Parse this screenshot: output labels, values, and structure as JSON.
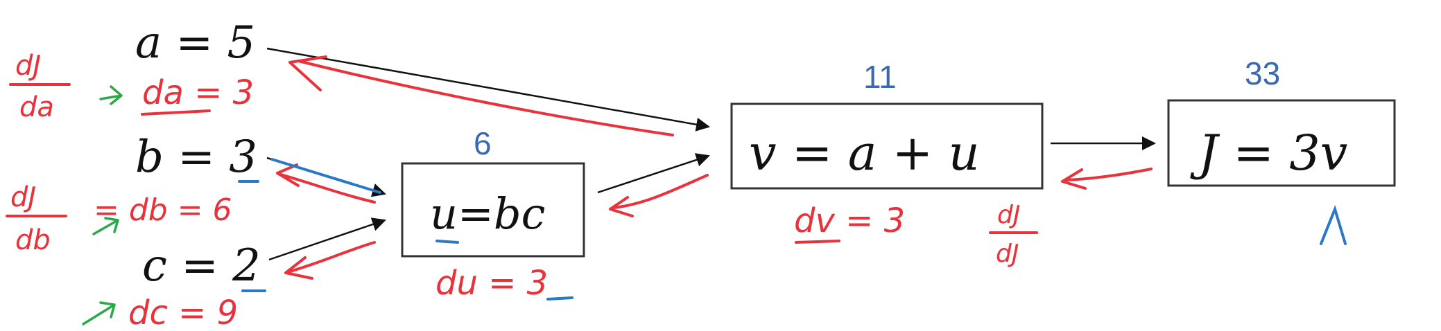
{
  "diagram": {
    "inputs": {
      "a": "a = 5",
      "b": "b = 3",
      "c": "c = 2"
    },
    "nodes": {
      "u": {
        "expr": "u=bc",
        "value": "6"
      },
      "v": {
        "expr": "v = a + u",
        "value": "11"
      },
      "J": {
        "expr": "J = 3v",
        "value": "33"
      }
    },
    "annotations": {
      "dJ_da_num": "dJ",
      "dJ_da_den": "da",
      "da": "da = 3",
      "dJ_db_num": "dJ",
      "dJ_db_den": "db",
      "db": "= db = 6",
      "dc": "dc = 9",
      "du": "du = 3",
      "dv": "dv = 3",
      "dJ_dJ_num": "dJ",
      "dJ_dJ_den": "dJ"
    },
    "colors": {
      "annotation_red": "#e8323c",
      "value_blue": "#3a69b0",
      "underline_blue": "#2a78c8",
      "green_arrow": "#2aa84a"
    }
  }
}
